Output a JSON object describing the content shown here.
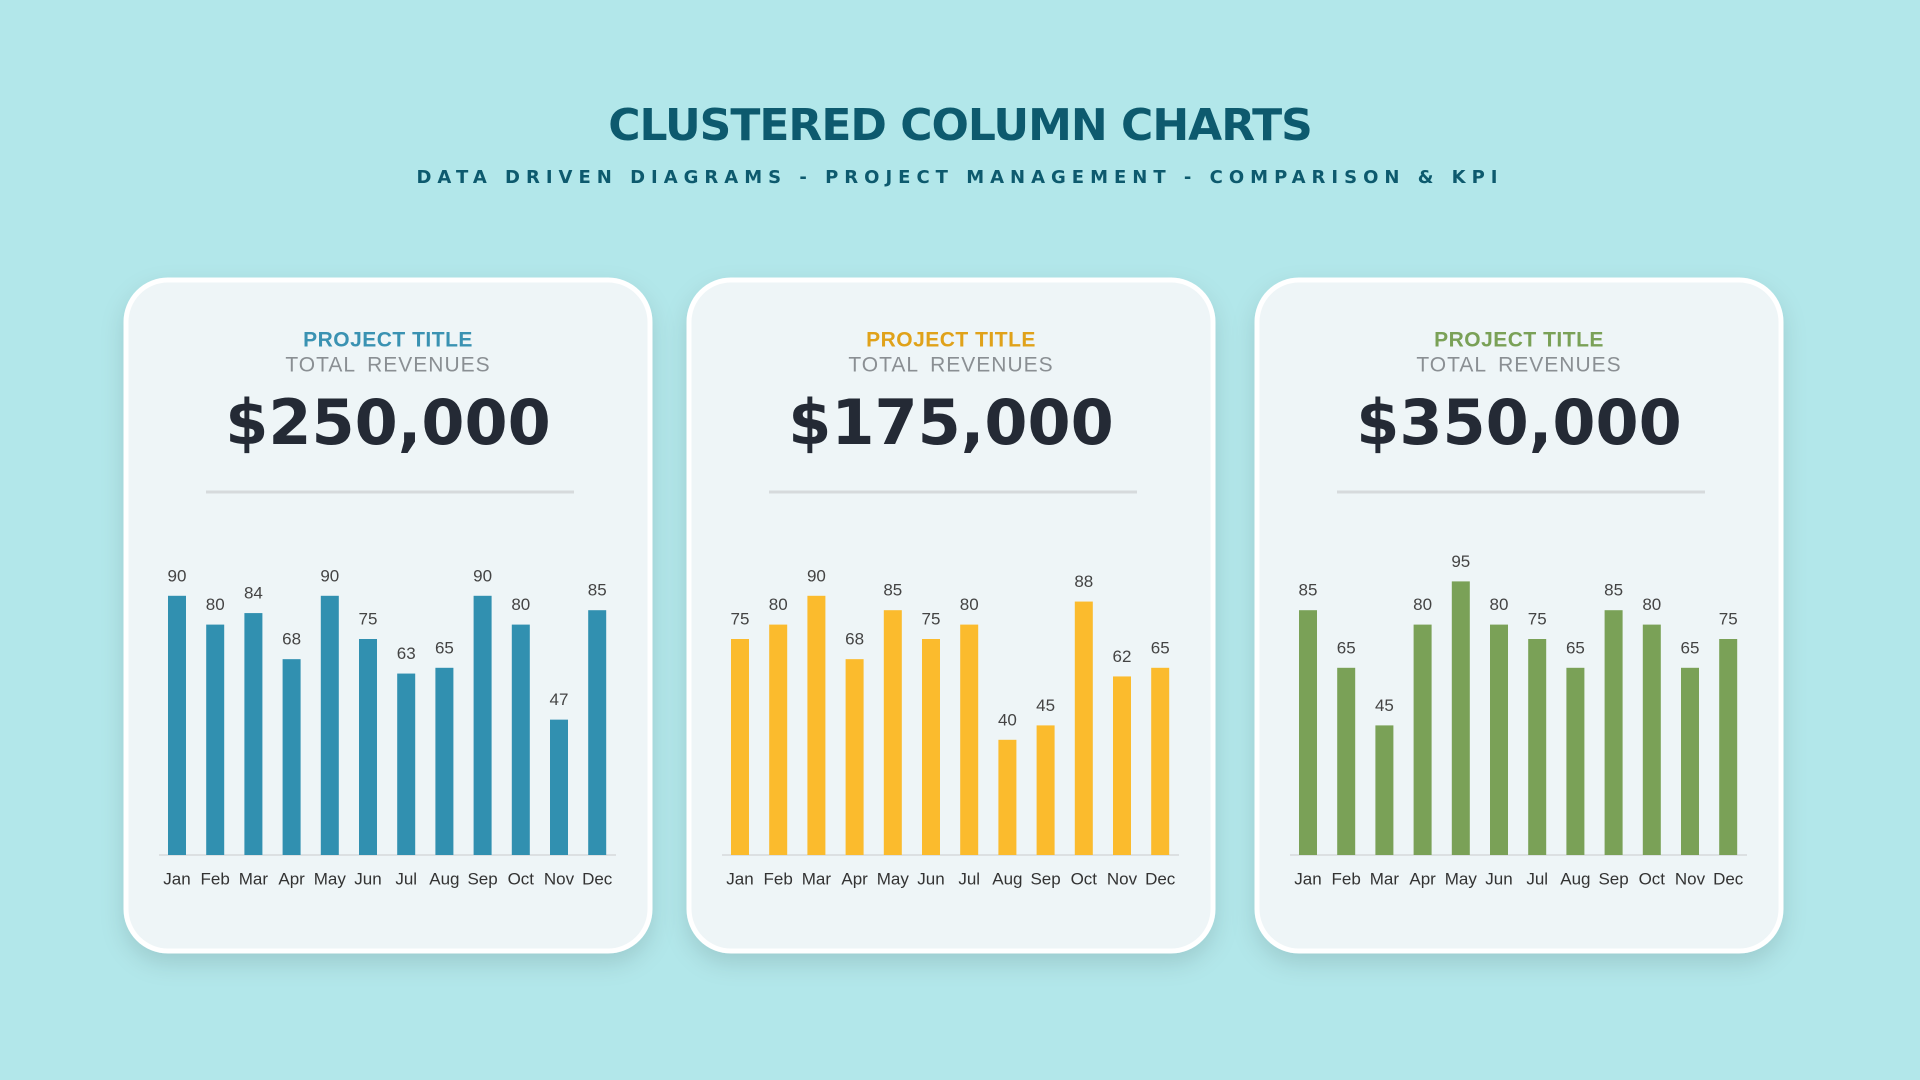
{
  "title": "CLUSTERED COLUMN CHARTS",
  "subtitle": "DATA DRIVEN DIAGRAMS - PROJECT MANAGEMENT - COMPARISON & KPI",
  "chart_data": [
    {
      "type": "bar",
      "title": "PROJECT TITLE",
      "subtitle": "TOTAL REVENUES",
      "kpi": "$250,000",
      "title_color": "#3a92b2",
      "color": "#3190b0",
      "categories": [
        "Jan",
        "Feb",
        "Mar",
        "Apr",
        "May",
        "Jun",
        "Jul",
        "Aug",
        "Sep",
        "Oct",
        "Nov",
        "Dec"
      ],
      "values": [
        90,
        80,
        84,
        68,
        90,
        75,
        63,
        65,
        90,
        80,
        47,
        85
      ],
      "ylim": [
        0,
        100
      ]
    },
    {
      "type": "bar",
      "title": "PROJECT TITLE",
      "subtitle": "TOTAL REVENUES",
      "kpi": "$175,000",
      "title_color": "#e0a21a",
      "color": "#fbbb2d",
      "categories": [
        "Jan",
        "Feb",
        "Mar",
        "Apr",
        "May",
        "Jun",
        "Jul",
        "Aug",
        "Sep",
        "Oct",
        "Nov",
        "Dec"
      ],
      "values": [
        75,
        80,
        90,
        68,
        85,
        75,
        80,
        40,
        45,
        88,
        62,
        65
      ],
      "ylim": [
        0,
        100
      ]
    },
    {
      "type": "bar",
      "title": "PROJECT TITLE",
      "subtitle": "TOTAL REVENUES",
      "kpi": "$350,000",
      "title_color": "#7aa157",
      "color": "#7aa157",
      "categories": [
        "Jan",
        "Feb",
        "Mar",
        "Apr",
        "May",
        "Jun",
        "Jul",
        "Aug",
        "Sep",
        "Oct",
        "Nov",
        "Dec"
      ],
      "values": [
        85,
        65,
        45,
        80,
        95,
        80,
        75,
        65,
        85,
        80,
        65,
        75
      ],
      "ylim": [
        0,
        100
      ]
    }
  ]
}
